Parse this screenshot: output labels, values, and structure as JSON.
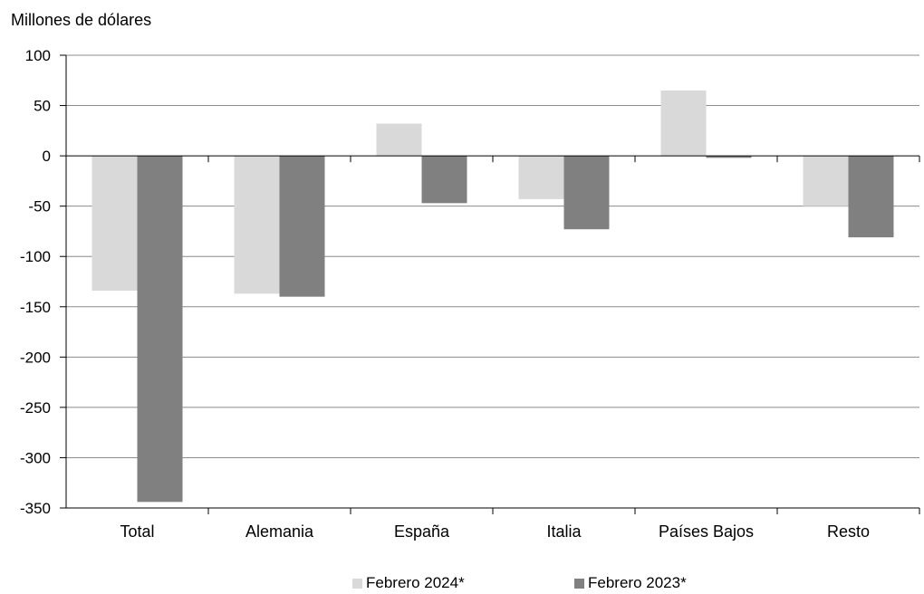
{
  "chart_data": {
    "type": "bar",
    "ylabel": "Millones de dólares",
    "categories": [
      "Total",
      "Alemania",
      "España",
      "Italia",
      "Países Bajos",
      "Resto"
    ],
    "series": [
      {
        "name": "Febrero 2024*",
        "color": "#d9d9d9",
        "values": [
          -134,
          -137,
          32,
          -43,
          65,
          -50
        ]
      },
      {
        "name": "Febrero 2023*",
        "color": "#808080",
        "values": [
          -344,
          -140,
          -47,
          -73,
          -2,
          -81
        ]
      }
    ],
    "ylim": [
      -350,
      100
    ],
    "yticks": [
      100,
      50,
      0,
      -50,
      -100,
      -150,
      -200,
      -250,
      -300,
      -350
    ],
    "grid": true,
    "legend": "bottom"
  }
}
